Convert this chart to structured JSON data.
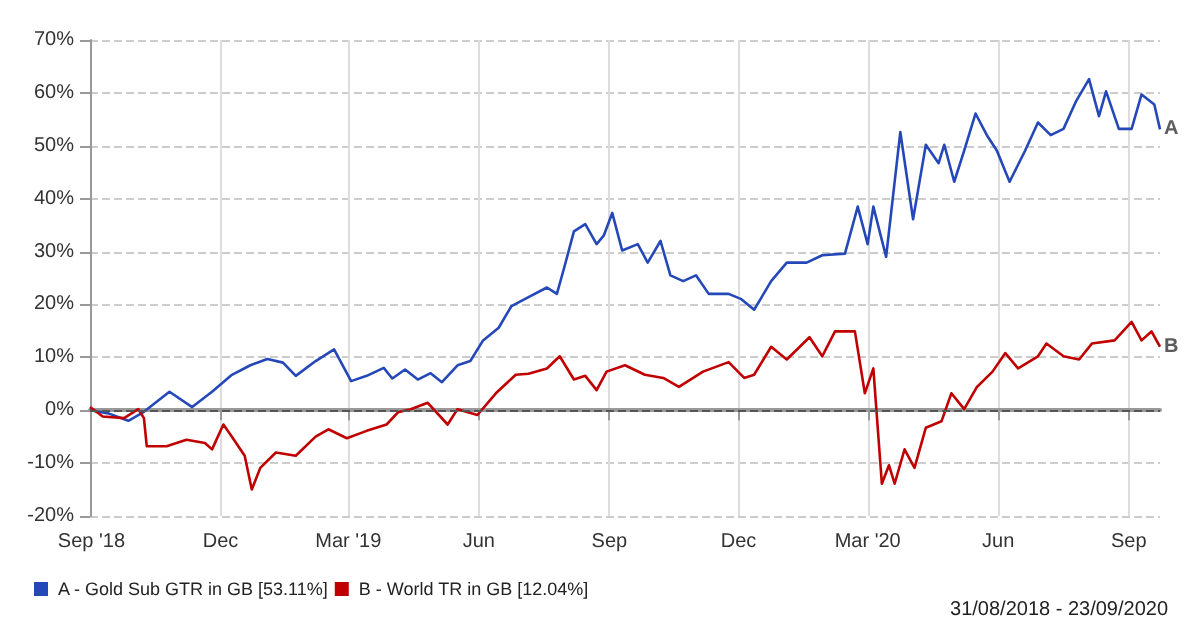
{
  "chart_data": {
    "type": "line",
    "xlim": [
      "2018-08-31",
      "2020-09-23"
    ],
    "xticks": [
      {
        "value": "2018-09-01",
        "label": "Sep '18"
      },
      {
        "value": "2018-12-01",
        "label": "Dec"
      },
      {
        "value": "2019-03-01",
        "label": "Mar '19"
      },
      {
        "value": "2019-06-01",
        "label": "Jun"
      },
      {
        "value": "2019-09-01",
        "label": "Sep"
      },
      {
        "value": "2019-12-01",
        "label": "Dec"
      },
      {
        "value": "2020-03-01",
        "label": "Mar '20"
      },
      {
        "value": "2020-06-01",
        "label": "Jun"
      },
      {
        "value": "2020-09-01",
        "label": "Sep"
      }
    ],
    "ylim": [
      -20,
      70
    ],
    "yticks": [
      {
        "value": -20,
        "label": "-20%"
      },
      {
        "value": -10,
        "label": "-10%"
      },
      {
        "value": 0,
        "label": "0%"
      },
      {
        "value": 10,
        "label": "10%"
      },
      {
        "value": 20,
        "label": "20%"
      },
      {
        "value": 30,
        "label": "30%"
      },
      {
        "value": 40,
        "label": "40%"
      },
      {
        "value": 50,
        "label": "50%"
      },
      {
        "value": 60,
        "label": "60%"
      },
      {
        "value": 70,
        "label": "70%"
      }
    ],
    "grid": true,
    "legend": "bottom left",
    "marker": "none",
    "line_style": "solid",
    "ref_lines": [
      {
        "axis": "y",
        "value": 0,
        "color": "#555555",
        "line_style": "dashed"
      }
    ],
    "annotations": [
      {
        "text": "A",
        "x": "2020-09-23",
        "y": 53.1
      },
      {
        "text": "B",
        "x": "2020-09-23",
        "y": 12.0
      },
      "31/08/2018 - 23/09/2020"
    ],
    "series": [
      {
        "name": "A - Gold Sub GTR in GB [53.11%]",
        "color": "#2548b8",
        "x": [
          "2018-08-31",
          "2018-09-13",
          "2018-09-27",
          "2018-10-08",
          "2018-10-26",
          "2018-11-11",
          "2018-11-25",
          "2018-12-09",
          "2018-12-22",
          "2019-01-03",
          "2019-01-14",
          "2019-01-23",
          "2019-02-06",
          "2019-02-19",
          "2019-03-03",
          "2019-03-14",
          "2019-03-26",
          "2019-04-01",
          "2019-04-10",
          "2019-04-19",
          "2019-04-28",
          "2019-05-06",
          "2019-05-17",
          "2019-05-26",
          "2019-06-04",
          "2019-06-15",
          "2019-06-24",
          "2019-07-06",
          "2019-07-19",
          "2019-07-26",
          "2019-07-31",
          "2019-08-07",
          "2019-08-15",
          "2019-08-23",
          "2019-08-28",
          "2019-09-03",
          "2019-09-10",
          "2019-09-21",
          "2019-09-28",
          "2019-10-07",
          "2019-10-14",
          "2019-10-23",
          "2019-11-01",
          "2019-11-10",
          "2019-11-24",
          "2019-12-03",
          "2019-12-12",
          "2019-12-24",
          "2020-01-04",
          "2020-01-18",
          "2020-01-29",
          "2020-02-14",
          "2020-02-23",
          "2020-03-01",
          "2020-03-05",
          "2020-03-14",
          "2020-03-24",
          "2020-04-02",
          "2020-04-11",
          "2020-04-20",
          "2020-04-24",
          "2020-05-01",
          "2020-05-08",
          "2020-05-16",
          "2020-05-24",
          "2020-05-31",
          "2020-06-09",
          "2020-06-20",
          "2020-06-29",
          "2020-07-08",
          "2020-07-17",
          "2020-07-26",
          "2020-08-04",
          "2020-08-11",
          "2020-08-16",
          "2020-08-25",
          "2020-09-03",
          "2020-09-10",
          "2020-09-19",
          "2020-09-23"
        ],
        "values": [
          0,
          -0.6,
          -2,
          -0.3,
          3.5,
          0.6,
          3.5,
          6.7,
          8.5,
          9.7,
          9,
          6.5,
          9.3,
          11.5,
          5.5,
          6.5,
          8,
          6,
          7.7,
          5.8,
          7,
          5.3,
          8.5,
          9.3,
          13.2,
          15.6,
          19.7,
          21.4,
          23.2,
          22,
          26.8,
          33.8,
          35.2,
          31.4,
          33,
          37.3,
          30.2,
          31.4,
          27.9,
          32,
          25.5,
          24.4,
          25.5,
          22,
          22,
          21,
          19,
          24.4,
          27.9,
          27.9,
          29.3,
          29.6,
          38.5,
          31.4,
          38.5,
          29,
          52.6,
          36.1,
          50.2,
          46.7,
          50.2,
          43.2,
          49.1,
          56.1,
          52,
          49.1,
          43.2,
          49.1,
          54.4,
          52,
          53.2,
          58.5,
          62.6,
          55.6,
          60.3,
          53.2,
          53.2,
          59.7,
          57.8,
          53.1
        ]
      },
      {
        "name": "B - World TR in GB [12.04%]",
        "color": "#c00000",
        "x": [
          "2018-08-31",
          "2018-09-09",
          "2018-09-24",
          "2018-10-04",
          "2018-10-08",
          "2018-10-10",
          "2018-10-24",
          "2018-11-07",
          "2018-11-20",
          "2018-11-25",
          "2018-12-03",
          "2018-12-09",
          "2018-12-18",
          "2018-12-23",
          "2018-12-29",
          "2019-01-09",
          "2019-01-23",
          "2019-02-06",
          "2019-02-15",
          "2019-02-28",
          "2019-03-14",
          "2019-03-28",
          "2019-04-05",
          "2019-04-14",
          "2019-04-26",
          "2019-05-10",
          "2019-05-17",
          "2019-05-31",
          "2019-06-13",
          "2019-06-27",
          "2019-07-06",
          "2019-07-19",
          "2019-07-28",
          "2019-08-07",
          "2019-08-15",
          "2019-08-23",
          "2019-08-30",
          "2019-09-12",
          "2019-09-26",
          "2019-10-09",
          "2019-10-20",
          "2019-11-06",
          "2019-11-24",
          "2019-12-05",
          "2019-12-12",
          "2019-12-24",
          "2020-01-04",
          "2020-01-20",
          "2020-01-29",
          "2020-02-07",
          "2020-02-21",
          "2020-02-28",
          "2020-03-05",
          "2020-03-11",
          "2020-03-16",
          "2020-03-20",
          "2020-03-27",
          "2020-04-03",
          "2020-04-11",
          "2020-04-22",
          "2020-04-29",
          "2020-05-08",
          "2020-05-17",
          "2020-05-28",
          "2020-06-06",
          "2020-06-15",
          "2020-06-29",
          "2020-07-05",
          "2020-07-17",
          "2020-07-28",
          "2020-08-06",
          "2020-08-22",
          "2020-09-03",
          "2020-09-10",
          "2020-09-17",
          "2020-09-23"
        ],
        "values": [
          0.6,
          -1.2,
          -1.5,
          0.2,
          -1.5,
          -6.8,
          -6.8,
          -5.6,
          -6.2,
          -7.4,
          -2.7,
          -5,
          -8.6,
          -15,
          -10.9,
          -8,
          -8.6,
          -5,
          -3.6,
          -5.3,
          -3.9,
          -2.7,
          -0.4,
          0.2,
          1.4,
          -2.7,
          0.2,
          -0.9,
          3.2,
          6.7,
          6.9,
          7.9,
          10.2,
          5.8,
          6.5,
          3.8,
          7.3,
          8.5,
          6.7,
          6.1,
          4.4,
          7.3,
          9.1,
          6.1,
          6.7,
          12,
          9.6,
          13.8,
          10.2,
          14.9,
          14.9,
          3.2,
          7.9,
          -13.9,
          -10.4,
          -13.9,
          -7.4,
          -10.9,
          -3.3,
          -2.1,
          3.2,
          0.2,
          4.4,
          7.3,
          10.8,
          7.9,
          10.2,
          12.6,
          10.2,
          9.6,
          12.6,
          13.2,
          16.7,
          13.2,
          14.9,
          12.0
        ]
      }
    ]
  }
}
